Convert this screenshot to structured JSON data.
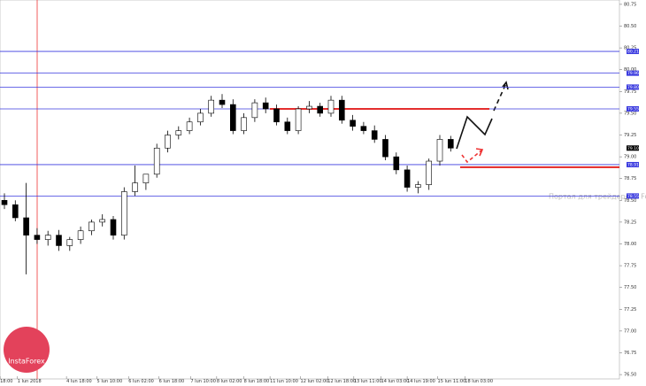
{
  "chart_data": {
    "type": "candlestick",
    "open": [
      78.5,
      78.45,
      78.3,
      78.1,
      78.05,
      78.1,
      77.98,
      78.05,
      78.15,
      78.25,
      78.28,
      78.1,
      78.6,
      78.7,
      78.8,
      79.1,
      79.25,
      79.3,
      79.4,
      79.5,
      79.65,
      79.6,
      79.3,
      79.45,
      79.62,
      79.55,
      79.4,
      79.3,
      79.55,
      79.58,
      79.5,
      79.65,
      79.42,
      79.35,
      79.3,
      79.2,
      79.0,
      78.85,
      78.65,
      78.68,
      78.95,
      79.2
    ],
    "high": [
      78.58,
      78.5,
      78.7,
      78.18,
      78.15,
      78.16,
      78.08,
      78.2,
      78.28,
      78.34,
      78.32,
      78.65,
      78.9,
      78.8,
      79.15,
      79.3,
      79.35,
      79.45,
      79.55,
      79.7,
      79.72,
      79.66,
      79.5,
      79.66,
      79.68,
      79.6,
      79.45,
      79.58,
      79.64,
      79.62,
      79.7,
      79.7,
      79.48,
      79.4,
      79.36,
      79.25,
      79.05,
      78.9,
      78.72,
      78.98,
      79.25,
      79.24
    ],
    "low": [
      78.4,
      78.26,
      77.65,
      78.0,
      77.98,
      77.92,
      77.92,
      78.0,
      78.1,
      78.2,
      78.05,
      78.05,
      78.55,
      78.62,
      78.76,
      79.05,
      79.2,
      79.26,
      79.36,
      79.46,
      79.56,
      79.26,
      79.26,
      79.4,
      79.5,
      79.36,
      79.26,
      79.26,
      79.5,
      79.46,
      79.46,
      79.38,
      79.3,
      79.26,
      79.16,
      78.96,
      78.8,
      78.6,
      78.58,
      78.62,
      78.9,
      79.06
    ],
    "close": [
      78.45,
      78.3,
      78.1,
      78.05,
      78.1,
      77.98,
      78.05,
      78.15,
      78.25,
      78.28,
      78.1,
      78.6,
      78.7,
      78.8,
      79.1,
      79.25,
      79.3,
      79.4,
      79.5,
      79.65,
      79.6,
      79.3,
      79.45,
      79.62,
      79.55,
      79.4,
      79.3,
      79.55,
      79.58,
      79.5,
      79.65,
      79.42,
      79.35,
      79.3,
      79.2,
      79.0,
      78.85,
      78.65,
      78.68,
      78.95,
      79.2,
      79.1
    ],
    "ylim": [
      76.45,
      80.8
    ],
    "yticks": [
      {
        "value": 76.5,
        "label": "76.50"
      },
      76.75,
      {
        "value": 77,
        "label": "77.00"
      },
      77.25,
      {
        "value": 77.5,
        "label": "77.50"
      },
      77.75,
      {
        "value": 78,
        "label": "78.00"
      },
      78.25,
      {
        "value": 78.5,
        "label": "78.50"
      },
      78.75,
      {
        "value": 79,
        "label": "79.00"
      },
      79.25,
      {
        "value": 79.5,
        "label": "79.50"
      },
      79.75,
      {
        "value": 80,
        "label": "80.00"
      },
      80.25,
      {
        "value": 80.5,
        "label": "80.50"
      },
      80.75
    ],
    "xticks": [
      {
        "value": -0.4,
        "label": "18:00"
      },
      {
        "value": 1.2,
        "label": "1 Jun 2018"
      },
      {
        "value": 5.7,
        "label": "4 Jun 18:00"
      },
      {
        "value": 8.5,
        "label": "5 Jun 10:00"
      },
      {
        "value": 11.4,
        "label": "6 Jun 02:00"
      },
      {
        "value": 14.2,
        "label": "6 Jun 18:00"
      },
      {
        "value": 17.1,
        "label": "7 Jun 10:00"
      },
      {
        "value": 19.5,
        "label": "8 Jun 02:00"
      },
      {
        "value": 22,
        "label": "8 Jun 18:00"
      },
      {
        "value": 24.4,
        "label": "11 Jun 10:00"
      },
      {
        "value": 27.2,
        "label": "12 Jun 02:00"
      },
      {
        "value": 29.7,
        "label": "12 Jun 18:00"
      },
      {
        "value": 32.1,
        "label": "13 Jun 11:00"
      },
      {
        "value": 34.6,
        "label": "14 Jun 03:00"
      },
      {
        "value": 37,
        "label": "14 Jun 19:00"
      },
      {
        "value": 39.8,
        "label": "15 Jun 11:00"
      },
      {
        "value": 42.3,
        "label": "18 Jun 03:00"
      }
    ],
    "levels": [
      {
        "value": 80.21,
        "color": "#3a3adf"
      },
      {
        "value": 79.96,
        "color": "#3a3adf"
      },
      {
        "value": 79.8,
        "label": "79.80",
        "color": "#3a3adf"
      },
      {
        "value": 79.55,
        "color": "#3a3adf"
      },
      {
        "value": 78.91,
        "color": "#3a3adf"
      },
      {
        "value": 78.55,
        "color": "#3a3adf"
      }
    ],
    "red_levels": [
      79.55,
      78.88
    ],
    "last_price": {
      "value": 79.1,
      "label": "79.10"
    },
    "watermark": "Портал для трейдеров - ForTrade",
    "logo": "InstaForex"
  }
}
